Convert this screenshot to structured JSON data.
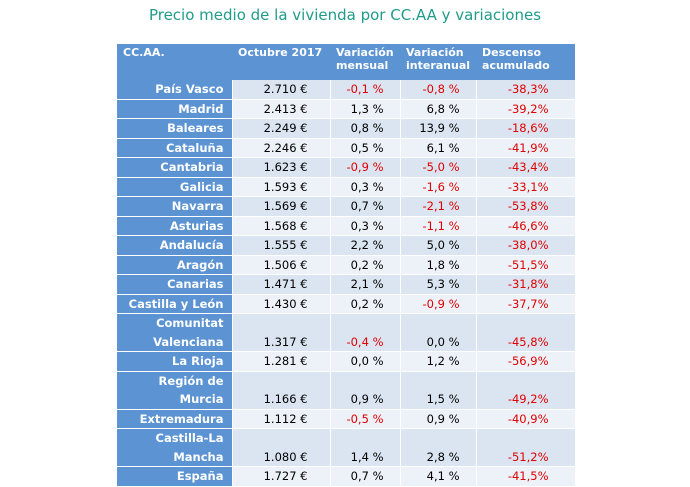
{
  "title": "Precio medio de la vivienda por CC.AA y variaciones",
  "table": {
    "header": [
      "CC.AA.",
      "Octubre 2017",
      "Variación mensual",
      "Variación interanual",
      "Descenso acumulado"
    ],
    "rows": [
      [
        "País Vasco",
        "2.710 €",
        "-0,1 %",
        "-0,8 %",
        "-38,3%"
      ],
      [
        "Madrid",
        "2.413 €",
        "1,3 %",
        "6,8 %",
        "-39,2%"
      ],
      [
        "Baleares",
        "2.249 €",
        "0,8 %",
        "13,9 %",
        "-18,6%"
      ],
      [
        "Cataluña",
        "2.246 €",
        "0,5 %",
        "6,1 %",
        "-41,9%"
      ],
      [
        "Cantabria",
        "1.623 €",
        "-0,9 %",
        "-5,0 %",
        "-43,4%"
      ],
      [
        "Galicia",
        "1.593 €",
        "0,3 %",
        "-1,6 %",
        "-33,1%"
      ],
      [
        "Navarra",
        "1.569 €",
        "0,7 %",
        "-2,1 %",
        "-53,8%"
      ],
      [
        "Asturias",
        "1.568 €",
        "0,3 %",
        "-1,1 %",
        "-46,6%"
      ],
      [
        "Andalucía",
        "1.555 €",
        "2,2 %",
        "5,0 %",
        "-38,0%"
      ],
      [
        "Aragón",
        "1.506 €",
        "0,2 %",
        "1,8 %",
        "-51,5%"
      ],
      [
        "Canarias",
        "1.471 €",
        "2,1 %",
        "5,3 %",
        "-31,8%"
      ],
      [
        "Castilla y León",
        "1.430 €",
        "0,2 %",
        "-0,9 %",
        "-37,7%"
      ],
      [
        "Comunitat Valenciana",
        "1.317 €",
        "-0,4 %",
        "0,0 %",
        "-45,8%"
      ],
      [
        "La Rioja",
        "1.281 €",
        "0,0 %",
        "1,2 %",
        "-56,9%"
      ],
      [
        "Región de Murcia",
        "1.166 €",
        "0,9 %",
        "1,5 %",
        "-49,2%"
      ],
      [
        "Extremadura",
        "1.112 €",
        "-0,5 %",
        "0,9 %",
        "-40,9%"
      ],
      [
        "Castilla-La Mancha",
        "1.080 €",
        "1,4 %",
        "2,8 %",
        "-51,2%"
      ],
      [
        "España",
        "1.727 €",
        "0,7 %",
        "4,1 %",
        "-41,5%"
      ]
    ]
  }
}
